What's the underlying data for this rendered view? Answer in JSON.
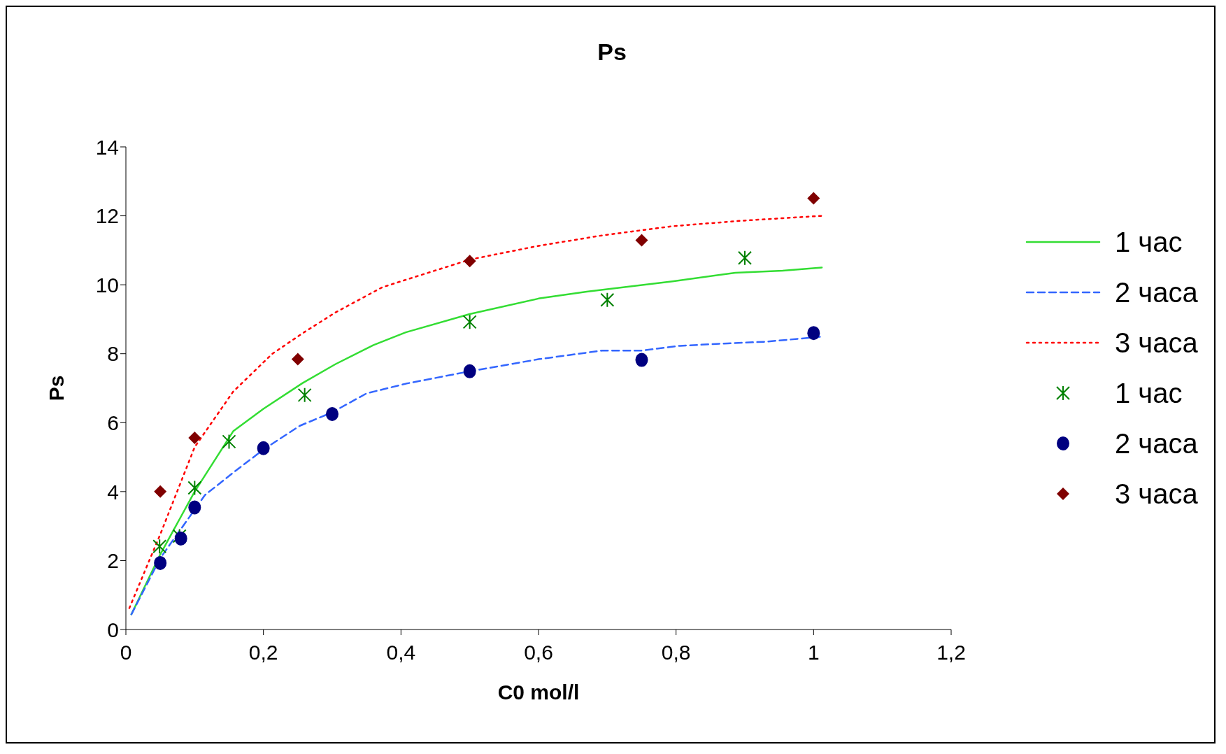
{
  "chart_data": {
    "type": "line",
    "title": "Ps",
    "xlabel": "C0 mol/l",
    "ylabel": "Ps",
    "legend": "right",
    "grid": false,
    "xlim": [
      0,
      1.2
    ],
    "xticks": [
      0,
      {
        "value": 0.2,
        "label": "0,2"
      },
      {
        "value": 0.4,
        "label": "0,4"
      },
      {
        "value": 0.6,
        "label": "0,6"
      },
      {
        "value": 0.8,
        "label": "0,8"
      },
      1,
      {
        "value": 1.2,
        "label": "1,2"
      }
    ],
    "ylim": [
      0,
      14
    ],
    "yticks": [
      0,
      2,
      4,
      6,
      8,
      10,
      12,
      14
    ],
    "series": [
      {
        "name": "1 час",
        "color": "#33dd33",
        "line_style": "solid",
        "marker": "none",
        "x": [
          0.008,
          0.05,
          0.1,
          0.156,
          0.2,
          0.257,
          0.305,
          0.36,
          0.407,
          0.5,
          0.6,
          0.67,
          0.795,
          0.886,
          0.955,
          1.012
        ],
        "values": [
          0.44,
          2.18,
          4.0,
          5.75,
          6.4,
          7.15,
          7.7,
          8.25,
          8.62,
          9.15,
          9.6,
          9.8,
          10.1,
          10.35,
          10.41,
          10.5
        ]
      },
      {
        "name": "2 часа",
        "color": "#3366ff",
        "line_style": "dashed",
        "marker": "none",
        "x": [
          0.008,
          0.05,
          0.115,
          0.156,
          0.2,
          0.253,
          0.3,
          0.35,
          0.407,
          0.5,
          0.6,
          0.692,
          0.75,
          0.806,
          0.875,
          0.932,
          1.015
        ],
        "values": [
          0.44,
          2.07,
          3.9,
          4.55,
          5.22,
          5.91,
          6.3,
          6.85,
          7.13,
          7.49,
          7.84,
          8.09,
          8.09,
          8.23,
          8.3,
          8.35,
          8.5
        ]
      },
      {
        "name": "3 часа",
        "color": "#ff0000",
        "line_style": "dotted",
        "marker": "none",
        "x": [
          0.005,
          0.05,
          0.1,
          0.156,
          0.213,
          0.259,
          0.305,
          0.373,
          0.5,
          0.6,
          0.692,
          0.795,
          0.897,
          1.012
        ],
        "values": [
          0.62,
          2.76,
          5.29,
          6.9,
          8.0,
          8.62,
          9.2,
          9.93,
          10.73,
          11.13,
          11.43,
          11.7,
          11.86,
          12.0
        ]
      },
      {
        "name": "1 час",
        "type": "scatter",
        "color": "#008000",
        "marker": "cross",
        "x": [
          0.049,
          0.078,
          0.1,
          0.15,
          0.26,
          0.5,
          0.7,
          0.9
        ],
        "values": [
          2.41,
          2.71,
          4.11,
          5.45,
          6.8,
          8.92,
          9.56,
          10.78
        ]
      },
      {
        "name": "2 часа",
        "type": "scatter",
        "color": "#000080",
        "marker": "circle",
        "x": [
          0.05,
          0.08,
          0.1,
          0.2,
          0.3,
          0.5,
          0.75,
          1
        ],
        "values": [
          1.93,
          2.64,
          3.54,
          5.26,
          6.25,
          7.49,
          7.82,
          8.6
        ]
      },
      {
        "name": "3 часа",
        "type": "scatter",
        "color": "#800000",
        "marker": "diamond",
        "x": [
          0.05,
          0.1,
          0.25,
          0.5,
          0.75,
          1
        ],
        "values": [
          4.0,
          5.56,
          7.84,
          10.69,
          11.29,
          12.51
        ]
      }
    ]
  }
}
